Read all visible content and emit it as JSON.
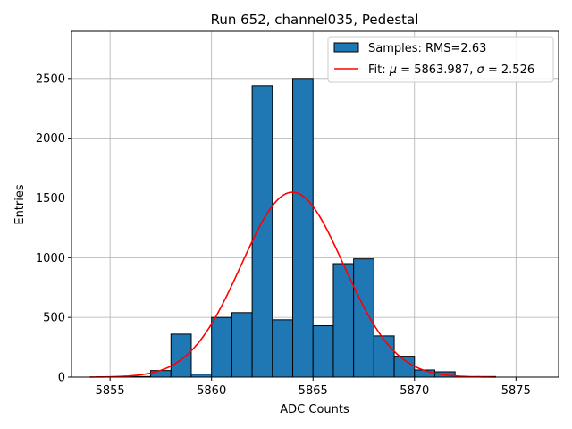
{
  "chart_data": {
    "type": "bar",
    "title": "Run 652, channel035, Pedestal",
    "xlabel": "ADC Counts",
    "ylabel": "Entries",
    "xlim": [
      5853.1,
      5877.1
    ],
    "ylim": [
      0,
      2895
    ],
    "xticks": [
      5855,
      5860,
      5865,
      5870,
      5875
    ],
    "yticks": [
      0,
      500,
      1000,
      1500,
      2000,
      2500
    ],
    "grid": true,
    "legend_position": "top-right",
    "colors": {
      "bar_fill": "#1f77b4",
      "bar_edge": "#000000",
      "fit_line": "#ff0000",
      "grid": "#b0b0b0"
    },
    "series": [
      {
        "name": "Samples: RMS=2.63",
        "kind": "histogram",
        "bin_width": 1,
        "bin_edges_start": [
          5854,
          5855,
          5856,
          5857,
          5858,
          5859,
          5860,
          5861,
          5862,
          5863,
          5864,
          5865,
          5866,
          5867,
          5868,
          5869,
          5870,
          5871,
          5872,
          5873
        ],
        "values": [
          0,
          0,
          5,
          55,
          360,
          25,
          500,
          540,
          2440,
          480,
          2500,
          430,
          950,
          990,
          345,
          175,
          60,
          45,
          0,
          5
        ]
      },
      {
        "name": "Fit: μ = 5863.987, σ = 2.526",
        "kind": "gaussian",
        "mu": 5863.987,
        "sigma": 2.526,
        "amplitude": 1548,
        "x_range": [
          5854,
          5874
        ]
      }
    ],
    "legend": {
      "samples_label": "Samples: RMS=2.63",
      "fit_label_prefix": "Fit: ",
      "fit_label_mu": "μ",
      "fit_label_mu_value": " = 5863.987, ",
      "fit_label_sigma": "σ",
      "fit_label_sigma_value": " = 2.526"
    }
  }
}
